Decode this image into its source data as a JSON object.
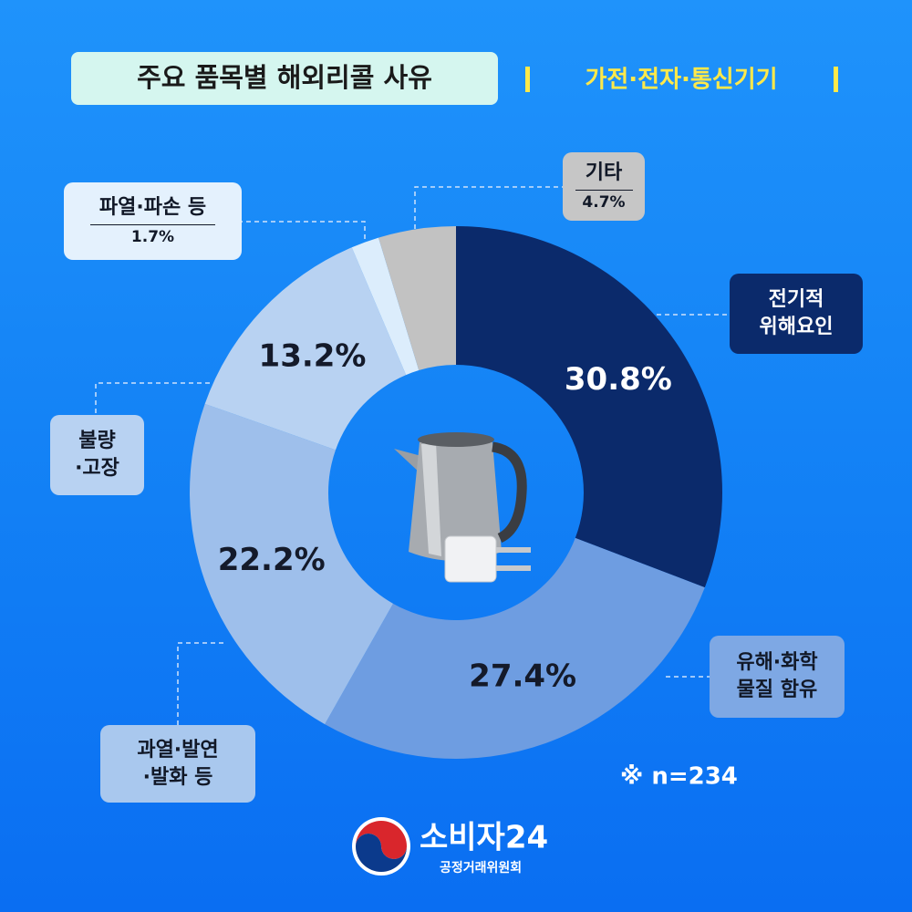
{
  "chart_data": {
    "type": "donut",
    "title": "주요 품목별 해외리콜 사유",
    "subtitle": "가전·전자·통신기기",
    "categories": [
      "전기적\n위해요인",
      "유해·화학\n물질 함유",
      "과열·발연\n·발화 등",
      "불량\n·고장",
      "파열·파손 등",
      "기타"
    ],
    "values": [
      30.8,
      27.4,
      22.2,
      13.2,
      1.7,
      4.7
    ],
    "value_labels": [
      "30.8%",
      "27.4%",
      "22.2%",
      "13.2%",
      "1.7%",
      "4.7%"
    ],
    "colors": [
      "#0b2a6b",
      "#6e9de1",
      "#9ebfeb",
      "#b8d2f2",
      "#dcedfc",
      "#c2c2c2"
    ],
    "note": "※ n=234"
  },
  "logo": {
    "name": "소비자24",
    "org": "공정거래위원회"
  }
}
